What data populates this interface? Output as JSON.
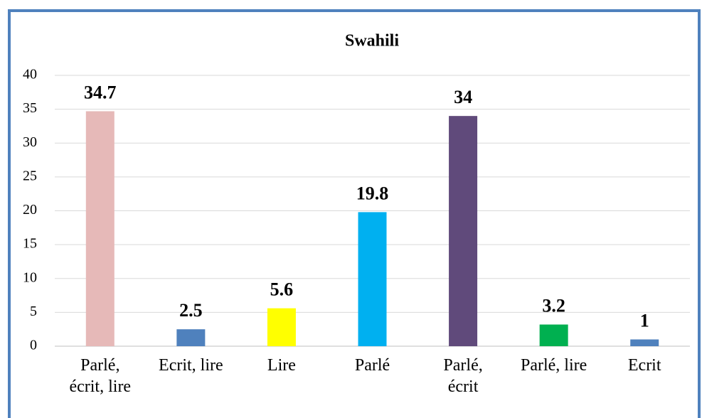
{
  "chart_data": {
    "type": "bar",
    "title": "Swahili",
    "categories": [
      "Parlé, écrit, lire",
      "Ecrit, lire",
      "Lire",
      "Parlé",
      "Parlé, écrit",
      "Parlé, lire",
      "Ecrit"
    ],
    "values": [
      34.7,
      2.5,
      5.6,
      19.8,
      34,
      3.2,
      1
    ],
    "colors": [
      "#e6b9b8",
      "#4f81bd",
      "#ffff00",
      "#00b0f0",
      "#604a7b",
      "#00b050",
      "#4f81bd"
    ],
    "ylim": [
      0,
      40
    ],
    "yticks": [
      0,
      5,
      10,
      15,
      20,
      25,
      30,
      35,
      40
    ],
    "grid": true
  }
}
